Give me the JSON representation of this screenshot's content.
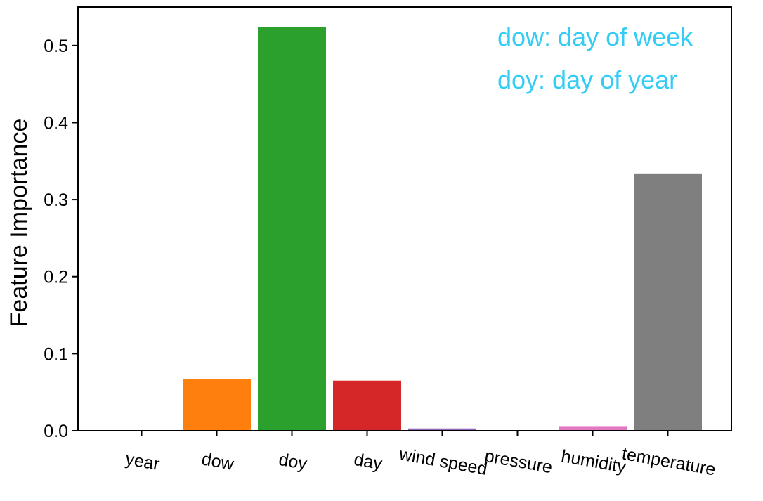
{
  "chart_data": {
    "type": "bar",
    "categories": [
      "year",
      "dow",
      "doy",
      "day",
      "wind speed",
      "pressure",
      "humidity",
      "temperature"
    ],
    "values": [
      0.0,
      0.067,
      0.524,
      0.065,
      0.003,
      0.0,
      0.006,
      0.334
    ],
    "colors": [
      "#1f77b4",
      "#ff7f0e",
      "#2ca02c",
      "#d62728",
      "#9467bd",
      "#8c564b",
      "#e377c2",
      "#7f7f7f"
    ],
    "ylabel": "Feature Importance",
    "xlabel": "",
    "ylim": [
      0,
      0.55
    ],
    "yticks": [
      "0.0",
      "0.1",
      "0.2",
      "0.3",
      "0.4",
      "0.5"
    ],
    "grid": false,
    "annotations": [
      "dow: day of week",
      "doy: day of year"
    ],
    "annotation_color": "#33ccf5"
  }
}
